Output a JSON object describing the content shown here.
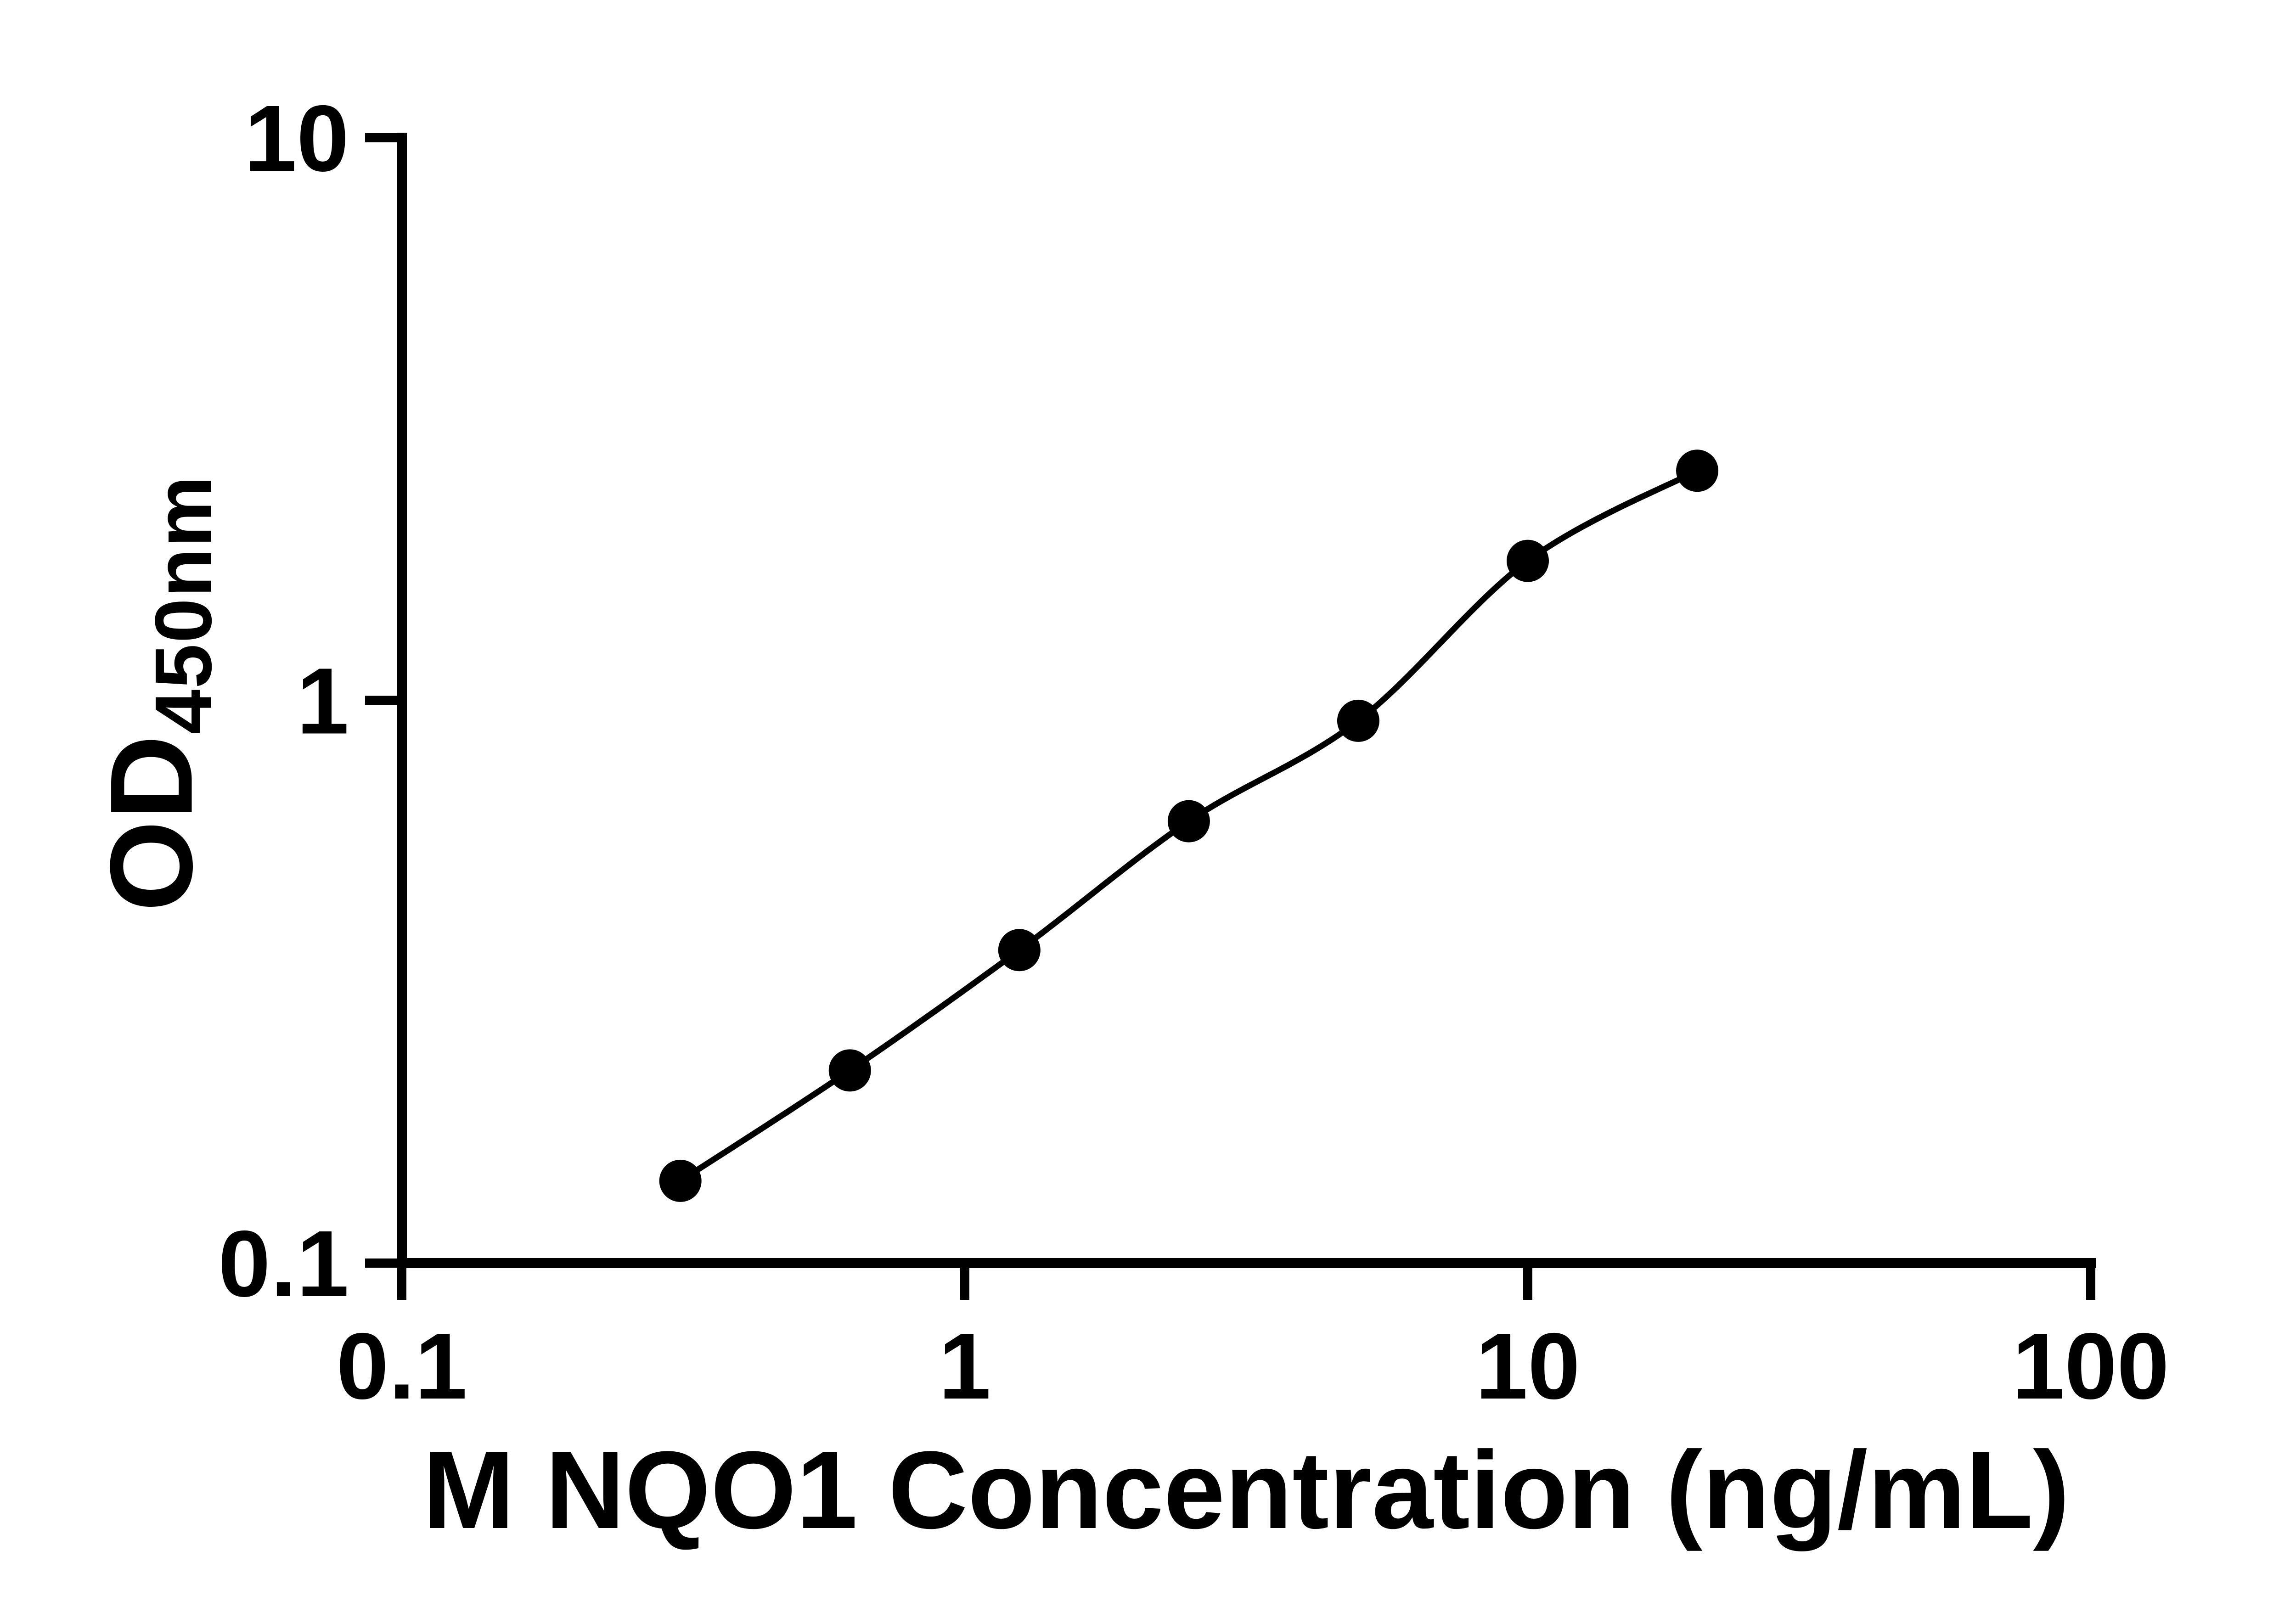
{
  "figure": {
    "background": "#ffffff",
    "ink_color": "#000000"
  },
  "chart_data": {
    "type": "scatter",
    "title": "",
    "xlabel": "M NQO1 Concentration (ng/mL)",
    "ylabel": "OD450nm",
    "ylabel_main": "OD",
    "ylabel_subscript": "450nm",
    "x_scale": "log10",
    "y_scale": "log10",
    "xlim": [
      0.1,
      100
    ],
    "ylim": [
      0.1,
      10
    ],
    "x_ticks": {
      "values": [
        0.1,
        1,
        10,
        100
      ],
      "labels": [
        "0.1",
        "1",
        "10",
        "100"
      ]
    },
    "y_ticks": {
      "values": [
        10,
        1,
        0.1
      ],
      "labels": [
        "10",
        "1",
        "0.1"
      ]
    },
    "x": [
      0.3125,
      0.625,
      1.25,
      2.5,
      5,
      10,
      20
    ],
    "y": [
      0.14,
      0.22,
      0.36,
      0.61,
      0.92,
      1.77,
      2.56
    ],
    "fit_curve": "smooth standard-curve fit through points",
    "grid": false,
    "legend": "none",
    "marker": {
      "shape": "circle",
      "color": "#000000"
    },
    "line": {
      "color": "#000000"
    }
  }
}
